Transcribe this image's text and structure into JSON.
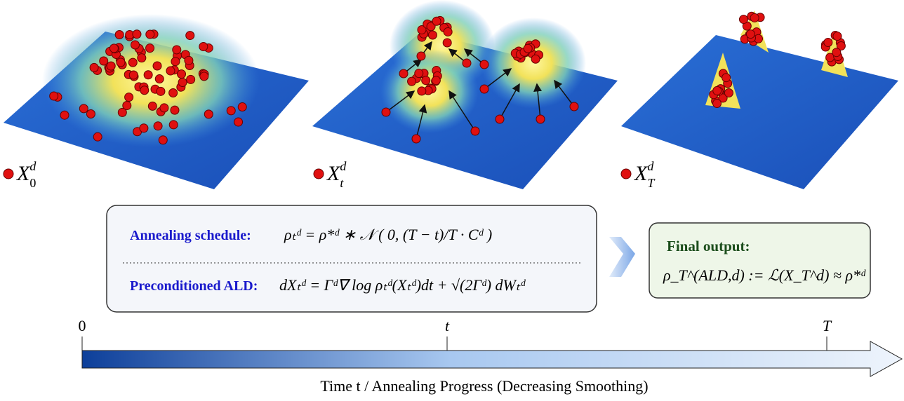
{
  "labels": [
    {
      "base": "X",
      "sub": "0",
      "sup": "d"
    },
    {
      "base": "X",
      "sub": "t",
      "sup": "d"
    },
    {
      "base": "X",
      "sub": "T",
      "sup": "d"
    }
  ],
  "schedule": {
    "label": "Annealing schedule:",
    "formula": "ρₜᵈ = ρ*ᵈ ∗ 𝒩 ( 0, (T − t)/T · Cᵈ )"
  },
  "ald": {
    "label": "Preconditioned ALD:",
    "formula": "dXₜᵈ = Γᵈ∇ log ρₜᵈ(Xₜᵈ)dt + √(2Γᵈ) dWₜᵈ"
  },
  "final": {
    "label": "Final output:",
    "formula": "ρ_T^(ALD,d) := ℒ(X_T^d) ≈ ρ*ᵈ"
  },
  "timeline": {
    "ticks": [
      "0",
      "t",
      "T"
    ],
    "axis_label": "Time t / Annealing Progress (Decreasing Smoothing)"
  }
}
